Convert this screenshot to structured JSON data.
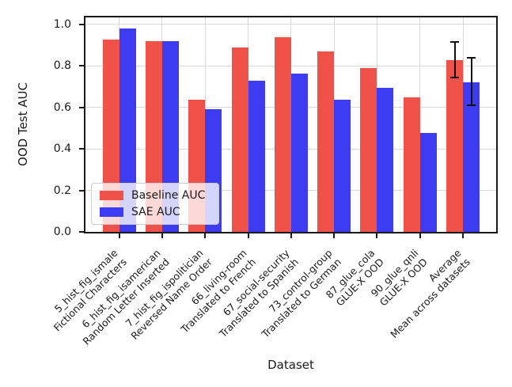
{
  "figure": {
    "ylabel": "OOD Test AUC",
    "xlabel": "Dataset",
    "yticks": [
      "0.0",
      "0.2",
      "0.4",
      "0.6",
      "0.8",
      "1.0"
    ],
    "colors": {
      "baseline": "#f0524a",
      "sae": "#3d3cf2",
      "grid": "#d9d9d9",
      "spine": "#1b1b1b",
      "errorbar": "#111111"
    }
  },
  "chart_data": {
    "type": "bar",
    "title": "",
    "xlabel": "Dataset",
    "ylabel": "OOD Test AUC",
    "ylim": [
      0.0,
      1.035
    ],
    "grid": true,
    "legend_position": "lower left",
    "categories": [
      {
        "line1": "5_hist_fig_ismale",
        "line2": "Fictional Characters"
      },
      {
        "line1": "6_hist_fig_isamerican",
        "line2": "Random Letter Inserted"
      },
      {
        "line1": "7_hist_fig_ispolitician",
        "line2": "Reversed Name Order"
      },
      {
        "line1": "66_living-room",
        "line2": "Translated to French"
      },
      {
        "line1": "67_social-security",
        "line2": "Translated to Spanish"
      },
      {
        "line1": "73_control-group",
        "line2": "Translated to German"
      },
      {
        "line1": "87_glue_cola",
        "line2": "GLUE-X OOD"
      },
      {
        "line1": "90_glue_qnli",
        "line2": "GLUE-X OOD"
      },
      {
        "line1": "Average",
        "line2": "Mean across datasets"
      }
    ],
    "series": [
      {
        "name": "Baseline AUC",
        "color": "#f0524a",
        "values": [
          0.925,
          0.92,
          0.638,
          0.889,
          0.936,
          0.87,
          0.79,
          0.648,
          0.828
        ],
        "error_bars": [
          null,
          null,
          null,
          null,
          null,
          null,
          null,
          null,
          {
            "low": 0.742,
            "high": 0.916
          }
        ]
      },
      {
        "name": "SAE AUC",
        "color": "#3d3cf2",
        "values": [
          0.98,
          0.92,
          0.59,
          0.728,
          0.761,
          0.637,
          0.695,
          0.476,
          0.722
        ],
        "error_bars": [
          null,
          null,
          null,
          null,
          null,
          null,
          null,
          null,
          {
            "low": 0.611,
            "high": 0.84
          }
        ]
      }
    ]
  }
}
